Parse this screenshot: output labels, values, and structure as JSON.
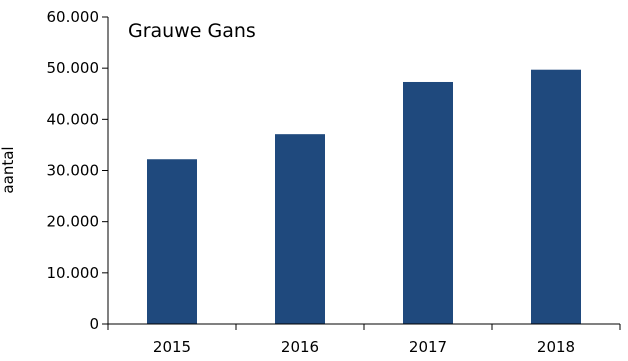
{
  "chart_data": {
    "type": "bar",
    "title": "Grauwe Gans",
    "xlabel": "",
    "ylabel": "aantal",
    "categories": [
      "2015",
      "2016",
      "2017",
      "2018"
    ],
    "values": [
      32200,
      37100,
      47300,
      49700
    ],
    "ylim": [
      0,
      60000
    ],
    "yticks": [
      0,
      10000,
      20000,
      30000,
      40000,
      50000,
      60000
    ],
    "ytick_labels": [
      "0",
      "10.000",
      "20.000",
      "30.000",
      "40.000",
      "50.000",
      "60.000"
    ],
    "bar_color": "#1f497d",
    "grid": false,
    "legend": "none"
  }
}
